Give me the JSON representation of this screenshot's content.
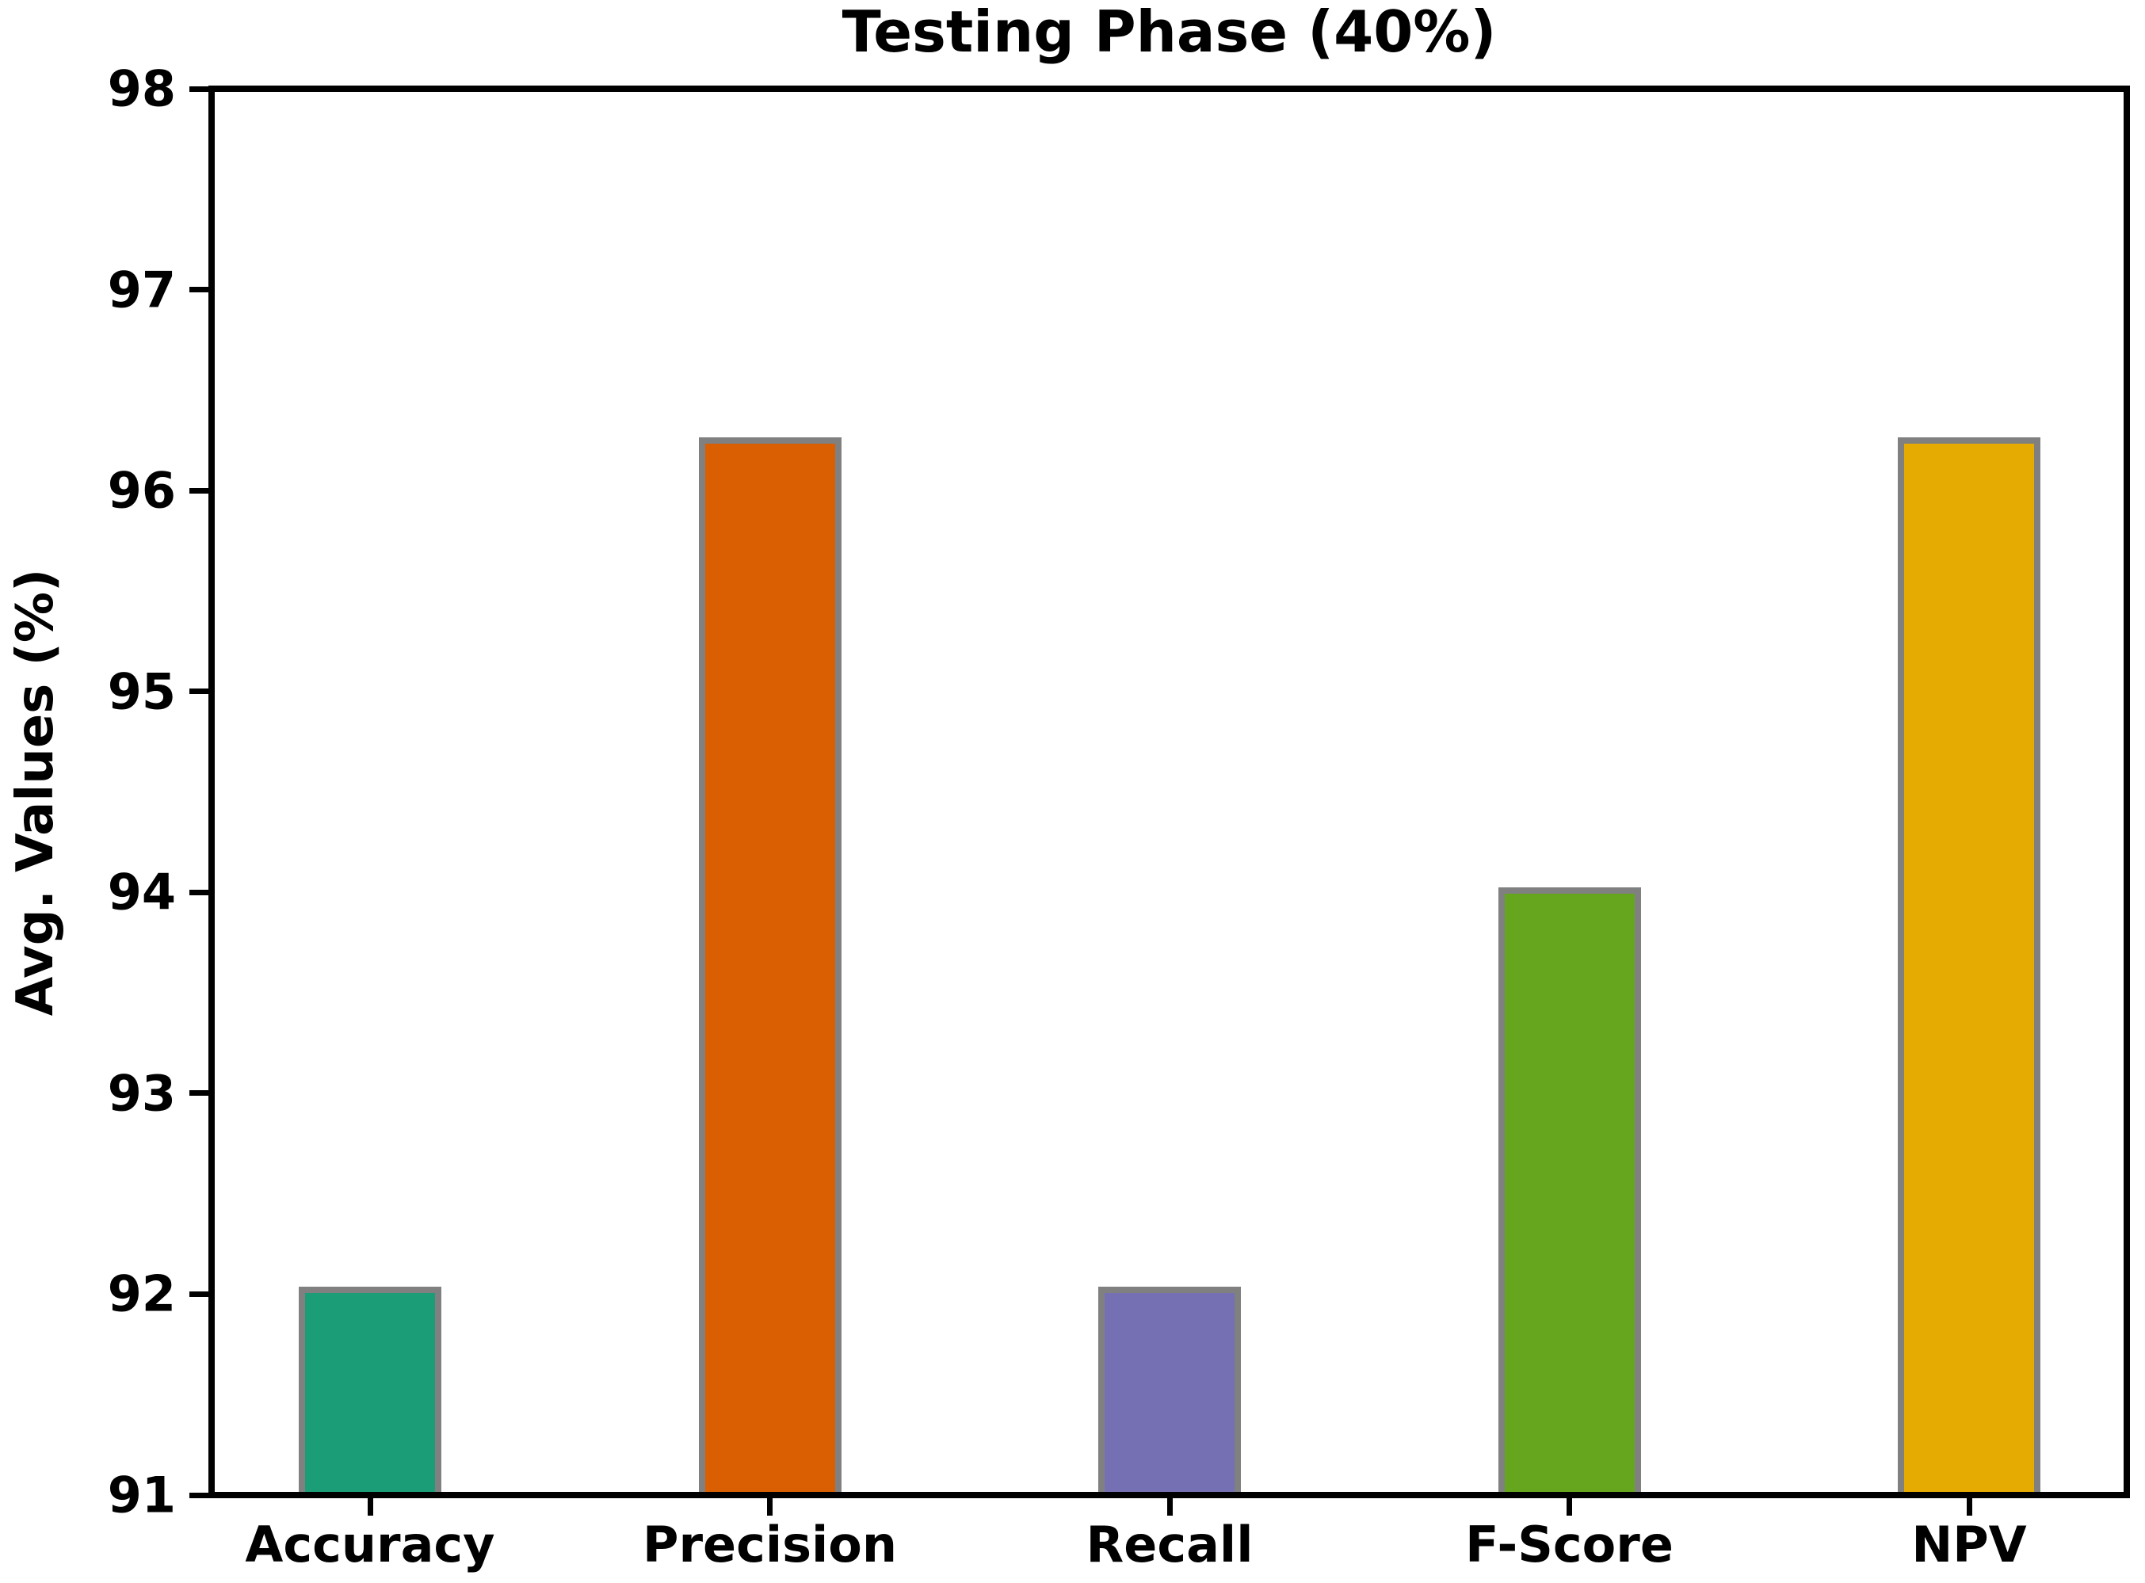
{
  "chart_data": {
    "type": "bar",
    "title": "Testing Phase (40%)",
    "xlabel": "",
    "ylabel": "Avg. Values (%)",
    "categories": [
      "Accuracy",
      "Precision",
      "Recall",
      "F-Score",
      "NPV"
    ],
    "values": [
      92.02,
      96.25,
      92.02,
      94.01,
      96.25
    ],
    "bar_colors": [
      "#1b9e77",
      "#d95f02",
      "#7570b3",
      "#66a61e",
      "#e6ab02"
    ],
    "bar_edge_color": "#808080",
    "ylim": [
      91,
      98
    ],
    "yticks": [
      91,
      92,
      93,
      94,
      95,
      96,
      97,
      98
    ],
    "grid": false,
    "legend": "none",
    "plot_border_color": "#000000",
    "text_color": "#000000"
  }
}
